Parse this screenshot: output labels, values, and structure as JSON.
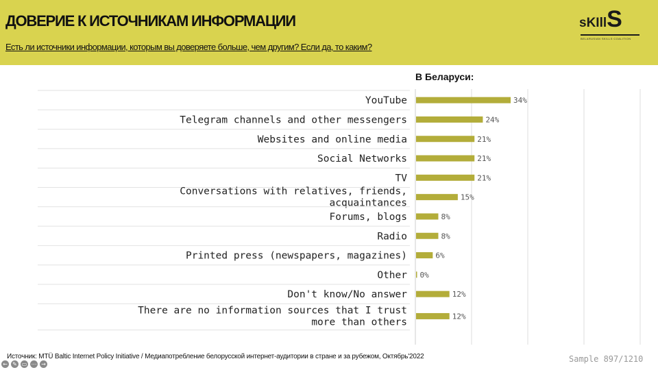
{
  "header": {
    "title": "ДОВЕРИЕ К ИСТОЧНИКАМ ИНФОРМАЦИИ",
    "subtitle": "Есть ли источники информации, которым вы доверяете больше, чем другим? Если да, то каким?"
  },
  "logo": {
    "text_a": "sKIll",
    "text_b": "S",
    "tagline": "BELARUSIAN SKILLS COALITION"
  },
  "colors": {
    "header_bg": "#d9d34f",
    "bar": "#b3ad3a"
  },
  "chart_data": {
    "type": "bar",
    "orientation": "horizontal",
    "series_label": "В Беларуси:",
    "categories": [
      "YouTube",
      "Telegram channels and other messengers",
      "Websites and online media",
      "Social Networks",
      "TV",
      "Conversations with relatives, friends, acquaintances",
      "Forums, blogs",
      "Radio",
      "Printed press (newspapers, magazines)",
      "Other",
      "Don't know/No answer",
      "There are no information sources that I trust more than others"
    ],
    "values": [
      34,
      24,
      21,
      21,
      21,
      15,
      8,
      8,
      6,
      0,
      12,
      12
    ],
    "value_labels": [
      "34%",
      "24%",
      "21%",
      "21%",
      "21%",
      "15%",
      "8%",
      "8%",
      "6%",
      "0%",
      "12%",
      "12%"
    ],
    "xlim": [
      0,
      80
    ],
    "grid": "vertical"
  },
  "footer": {
    "source": "Источник: MTÜ Baltic Internet Policy Initiative / Медиапотребление белорусской интернет-аудитории в стране и за рубежом,  Октябрь'2022",
    "sample": "Sample 897/1210"
  },
  "controls": [
    {
      "icon": "back-icon",
      "glyph": "←"
    },
    {
      "icon": "pen-icon",
      "glyph": "✎"
    },
    {
      "icon": "caption-icon",
      "glyph": "▭"
    },
    {
      "icon": "menu-icon",
      "glyph": "⋯"
    },
    {
      "icon": "forward-icon",
      "glyph": "→"
    }
  ]
}
